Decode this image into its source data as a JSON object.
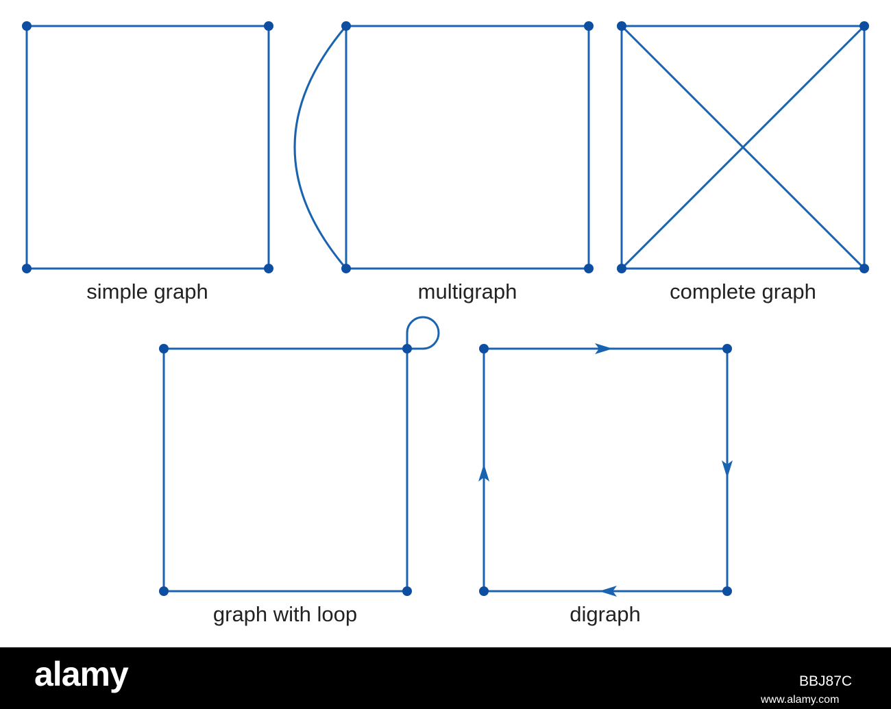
{
  "captions": {
    "simple": "simple graph",
    "multi": "multigraph",
    "complete": "complete graph",
    "loop": "graph with loop",
    "digraph": "digraph"
  },
  "footer": {
    "logo": "alamy",
    "site": "www.alamy.com",
    "image_id": "BBJ87C"
  },
  "colors": {
    "edge": "#1a63b0",
    "node": "#0d4ea0",
    "footer_bg": "#000000"
  }
}
